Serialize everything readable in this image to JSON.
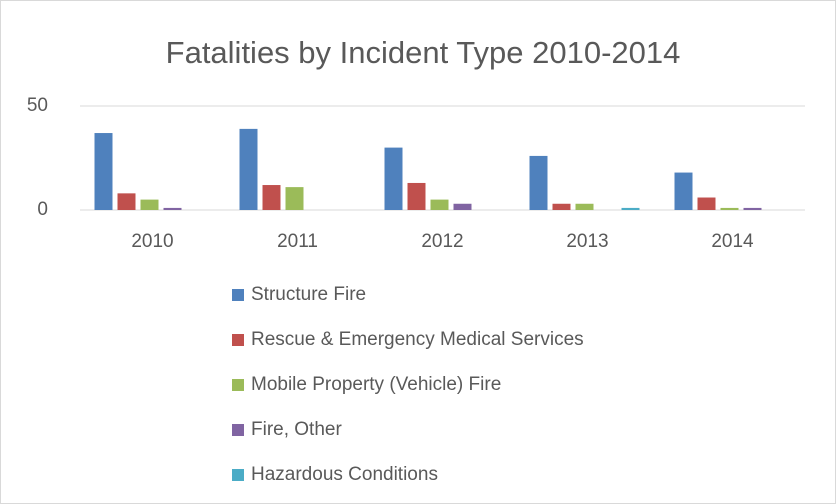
{
  "chart_data": {
    "type": "bar",
    "title": "Fatalities by Incident Type 2010-2014",
    "categories": [
      "2010",
      "2011",
      "2012",
      "2013",
      "2014"
    ],
    "series": [
      {
        "name": "Structure Fire",
        "color": "#4f81bd",
        "values": [
          37,
          39,
          30,
          26,
          18
        ]
      },
      {
        "name": "Rescue & Emergency Medical Services",
        "color": "#c0504d",
        "values": [
          8,
          12,
          13,
          3,
          6
        ]
      },
      {
        "name": "Mobile Property (Vehicle) Fire",
        "color": "#9bbb59",
        "values": [
          5,
          11,
          5,
          3,
          1
        ]
      },
      {
        "name": "Fire, Other",
        "color": "#8064a2",
        "values": [
          1,
          0,
          3,
          0,
          1
        ]
      },
      {
        "name": "Hazardous Conditions",
        "color": "#4bacc6",
        "values": [
          0,
          0,
          0,
          1,
          0
        ]
      }
    ],
    "ylim": [
      0,
      50
    ],
    "yticks": [
      0,
      50
    ],
    "grid": true
  }
}
